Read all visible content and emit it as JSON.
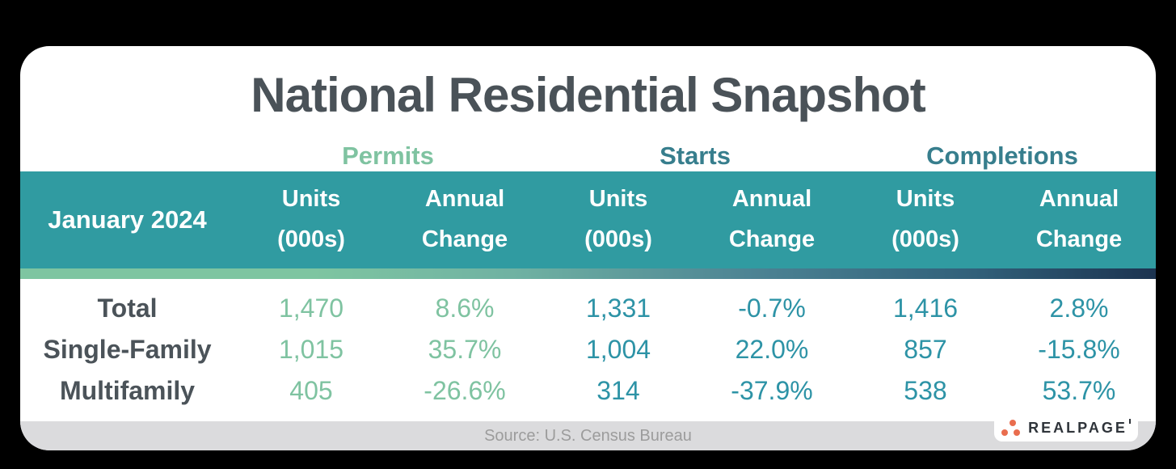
{
  "title": "National Residential Snapshot",
  "table": {
    "period_label": "January 2024",
    "group_headers": [
      {
        "label": "Permits"
      },
      {
        "label": "Starts"
      },
      {
        "label": "Completions"
      }
    ],
    "subheaders": {
      "units": {
        "line1": "Units",
        "line2": "(000s)"
      },
      "annual": {
        "line1": "Annual",
        "line2": "Change"
      }
    },
    "rows": [
      {
        "label": "Total",
        "values": [
          "1,470",
          "8.6%",
          "1,331",
          "-0.7%",
          "1,416",
          "2.8%"
        ]
      },
      {
        "label": "Single-Family",
        "values": [
          "1,015",
          "35.7%",
          "1,004",
          "22.0%",
          "857",
          "-15.8%"
        ]
      },
      {
        "label": "Multifamily",
        "values": [
          "405",
          "-26.6%",
          "314",
          "-37.9%",
          "538",
          "53.7%"
        ]
      }
    ]
  },
  "source_bar": {
    "text": "Source: U.S. Census Bureau"
  },
  "logo": {
    "text": "REALPAGE"
  },
  "colors": {
    "background": "#000000",
    "card": "#ffffff",
    "teal_band": "#309ba1",
    "permits_accent": "#7fc3a1",
    "group_header_teal": "#377e8d",
    "value_teal": "#2d93a6",
    "title_gray": "#4a5258",
    "row_label_gray": "#4b5359",
    "gradient_navy": "#1c3350",
    "source_bar_bg": "#dbdbdd",
    "source_text_gray": "#9c9c9c",
    "logo_orange": "#e96d4e",
    "logo_dark": "#2f343a"
  },
  "chart_data": {
    "type": "table",
    "title": "National Residential Snapshot",
    "period": "January 2024",
    "column_groups": [
      "Permits",
      "Starts",
      "Completions"
    ],
    "columns_per_group": [
      "Units (000s)",
      "Annual Change"
    ],
    "rows": [
      {
        "category": "Total",
        "permits": {
          "units_000s": 1470,
          "annual_change_pct": 8.6
        },
        "starts": {
          "units_000s": 1331,
          "annual_change_pct": -0.7
        },
        "completions": {
          "units_000s": 1416,
          "annual_change_pct": 2.8
        }
      },
      {
        "category": "Single-Family",
        "permits": {
          "units_000s": 1015,
          "annual_change_pct": 35.7
        },
        "starts": {
          "units_000s": 1004,
          "annual_change_pct": 22.0
        },
        "completions": {
          "units_000s": 857,
          "annual_change_pct": -15.8
        }
      },
      {
        "category": "Multifamily",
        "permits": {
          "units_000s": 405,
          "annual_change_pct": -26.6
        },
        "starts": {
          "units_000s": 314,
          "annual_change_pct": -37.9
        },
        "completions": {
          "units_000s": 538,
          "annual_change_pct": 53.7
        }
      }
    ],
    "source": "Source: U.S. Census Bureau"
  }
}
